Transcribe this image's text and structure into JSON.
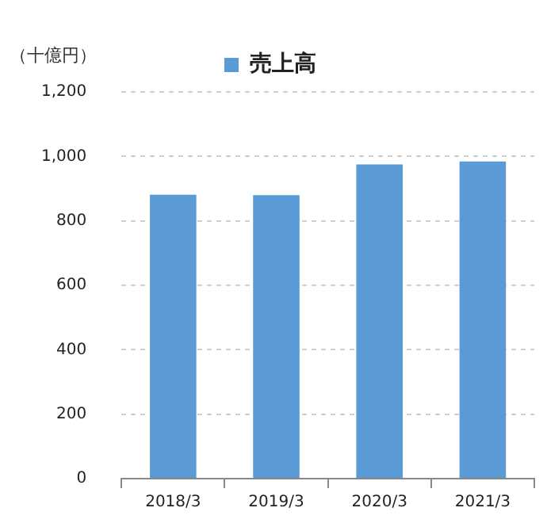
{
  "chart_data": {
    "type": "bar",
    "ylabel": "（十億円）",
    "categories": [
      "2018/3",
      "2019/3",
      "2020/3",
      "2021/3"
    ],
    "series": [
      {
        "name": "売上高",
        "color": "#5b9bd5",
        "values": [
          881,
          880,
          975,
          984
        ]
      }
    ],
    "ylim": [
      0,
      1200
    ],
    "yticks": [
      0,
      200,
      400,
      600,
      800,
      {
        "value": 1000,
        "label": "1,000"
      },
      {
        "value": 1200,
        "label": "1,200"
      }
    ],
    "grid": "y",
    "legend": "top"
  }
}
